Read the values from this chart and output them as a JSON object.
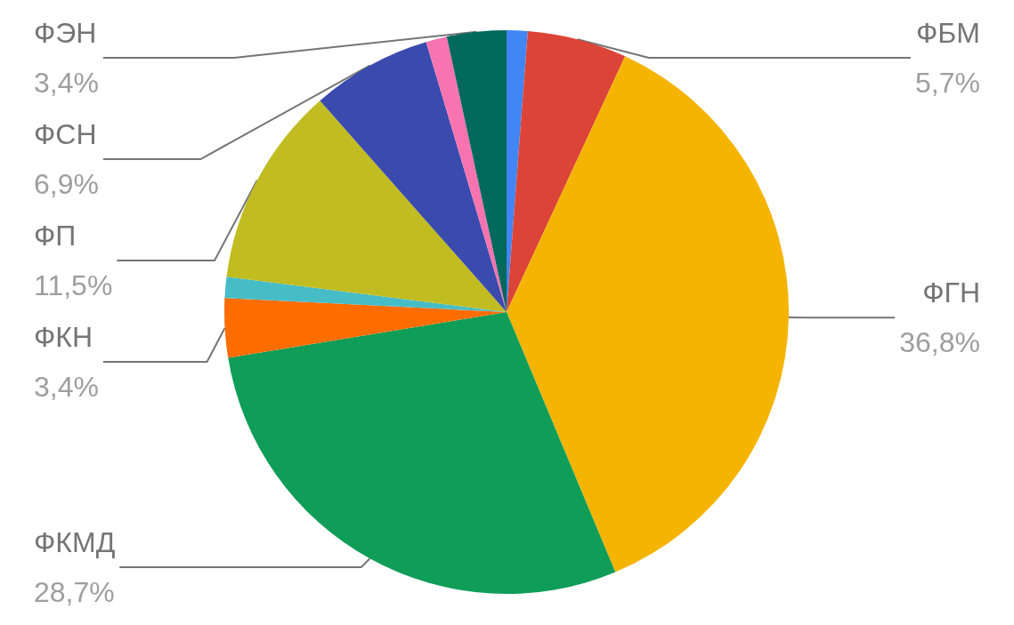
{
  "chart_data": {
    "type": "pie",
    "categories": [
      null,
      "ФБМ",
      "ФГН",
      "ФКМД",
      "ФКН",
      null,
      "ФП",
      "ФСН",
      null,
      "ФЭН"
    ],
    "values": [
      1.2,
      5.7,
      36.8,
      28.7,
      3.4,
      1.2,
      11.5,
      6.9,
      1.2,
      3.4
    ],
    "value_labels": [
      null,
      "5,7%",
      "36,8%",
      "28,7%",
      "3,4%",
      null,
      "11,5%",
      "6,9%",
      null,
      "3,4%"
    ],
    "colors": [
      "#4285f4",
      "#db4437",
      "#f4b400",
      "#0f9d58",
      "#ff6d00",
      "#46bdc6",
      "#c0bc21",
      "#3b4aad",
      "#f774b0",
      "#00695c"
    ],
    "legend": false
  }
}
